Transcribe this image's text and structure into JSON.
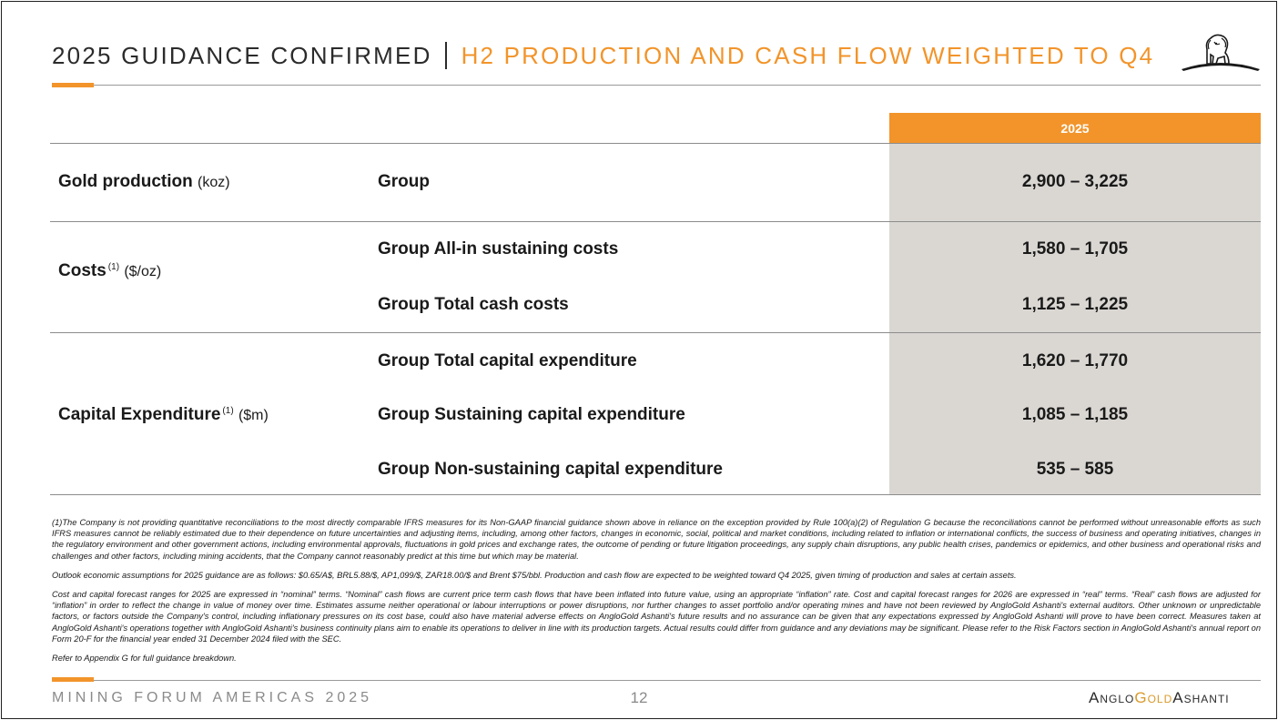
{
  "header": {
    "title_main": "2025 GUIDANCE CONFIRMED",
    "title_sub": "H2 PRODUCTION AND CASH FLOW WEIGHTED TO Q4"
  },
  "table": {
    "year_header": "2025",
    "rows": [
      {
        "category": "Gold production",
        "note_ref": "",
        "unit": "(koz)",
        "items": [
          {
            "label": "Group",
            "value": "2,900 – 3,225"
          }
        ]
      },
      {
        "category": "Costs",
        "note_ref": "(1)",
        "unit": "($/oz)",
        "items": [
          {
            "label": "Group All-in sustaining costs",
            "value": "1,580 – 1,705"
          },
          {
            "label": "Group Total cash costs",
            "value": "1,125 – 1,225"
          }
        ]
      },
      {
        "category": "Capital Expenditure",
        "note_ref": "(1)",
        "unit": "($m)",
        "items": [
          {
            "label": "Group Total capital expenditure",
            "value": "1,620 – 1,770"
          },
          {
            "label": "Group Sustaining capital expenditure",
            "value": "1,085 – 1,185"
          },
          {
            "label": "Group Non-sustaining capital expenditure",
            "value": "535 – 585"
          }
        ]
      }
    ]
  },
  "notes": [
    "(1)The Company is not providing quantitative reconciliations to the most directly comparable IFRS measures for its Non-GAAP financial guidance shown above in reliance on the exception provided by Rule 100(a)(2) of Regulation G because the reconciliations cannot be performed without unreasonable efforts as such IFRS measures cannot be reliably estimated due to their dependence on future uncertainties and adjusting items, including, among other factors, changes in economic, social, political and market conditions, including related to inflation or international conflicts, the success of business and operating initiatives, changes in the regulatory environment and other government actions, including environmental approvals, fluctuations in gold prices and exchange rates, the outcome of pending or future litigation proceedings, any supply chain disruptions, any public health crises, pandemics or epidemics, and other business and operational risks and challenges and other factors, including mining accidents, that the Company cannot reasonably predict at this time but which may be material.",
    "Outlook economic assumptions for 2025 guidance are as follows: $0.65/A$, BRL5.88/$, AP1,099/$, ZAR18.00/$ and Brent $75/bbl. Production and cash flow are expected to be weighted toward Q4 2025, given timing of production and sales at certain assets.",
    "Cost and capital forecast ranges for 2025 are expressed in “nominal” terms. “Nominal” cash flows are current price term cash flows that have been inflated into future value, using an appropriate “inflation” rate. Cost and capital forecast ranges for 2026 are expressed in “real” terms. “Real” cash flows are adjusted for “inflation” in order to reflect the change in value of money over time. Estimates assume neither operational or labour interruptions or power disruptions, nor further changes to asset portfolio and/or operating mines and have not been reviewed by AngloGold Ashanti's external auditors. Other unknown or unpredictable factors, or factors outside the Company's control, including inflationary pressures on its cost base, could also have material adverse effects on AngloGold Ashanti's future results and no assurance can be given that any expectations expressed by AngloGold Ashanti will prove to have been correct. Measures taken at AngloGold Ashanti's operations together with AngloGold Ashanti's business continuity plans aim to enable its operations to deliver in line with its production targets. Actual results could differ from guidance and any deviations may be significant. Please refer to the Risk Factors section in AngloGold Ashanti's annual report on Form 20-F for the financial year ended 31 December 2024 filed with the SEC.",
    "Refer to Appendix G for full guidance breakdown."
  ],
  "footer": {
    "event": "MINING FORUM AMERICAS 2025",
    "page_number": "12",
    "brand_part1": "Anglo",
    "brand_part2": "Gold",
    "brand_part3": "Ashanti"
  },
  "colors": {
    "accent": "#f2942a",
    "value_column_bg": "#dad7d3"
  },
  "icons": {
    "logo": "lion-logo-icon"
  }
}
